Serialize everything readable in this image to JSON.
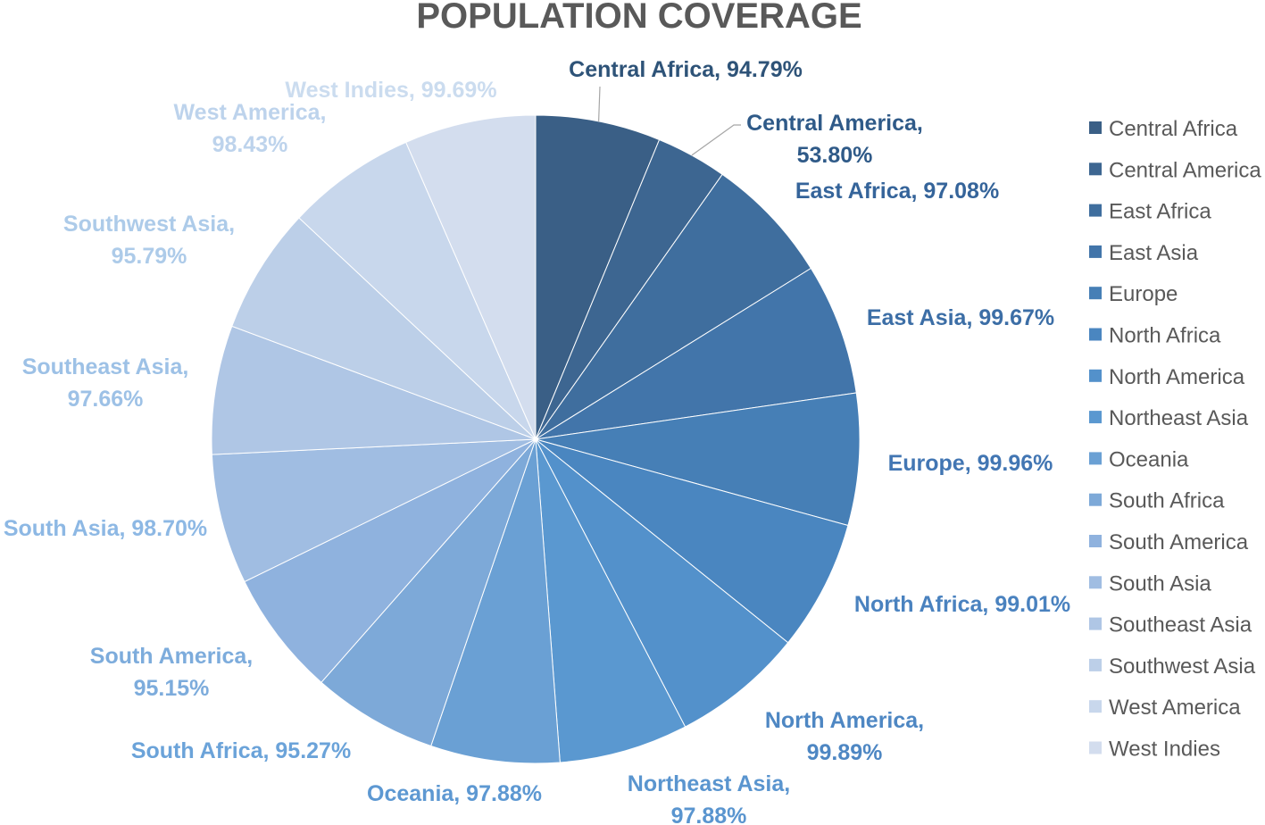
{
  "chart_data": {
    "type": "pie",
    "title": "POPULATION COVERAGE",
    "categories": [
      "Central Africa",
      "Central America",
      "East Africa",
      "East Asia",
      "Europe",
      "North Africa",
      "North America",
      "Northeast Asia",
      "Oceania",
      "South Africa",
      "South America",
      "South Asia",
      "Southeast Asia",
      "Southwest Asia",
      "West America",
      "West Indies"
    ],
    "values": [
      94.79,
      53.8,
      97.08,
      99.67,
      99.96,
      99.01,
      99.89,
      97.88,
      97.88,
      95.27,
      95.15,
      98.7,
      97.66,
      95.79,
      98.43,
      99.69
    ],
    "data_labels": [
      [
        "Central Africa, 94.79%"
      ],
      [
        "Central America,",
        "53.80%"
      ],
      [
        "East Africa, 97.08%"
      ],
      [
        "East Asia, 99.67%"
      ],
      [
        "Europe, 99.96%"
      ],
      [
        "North Africa, 99.01%"
      ],
      [
        "North America,",
        "99.89%"
      ],
      [
        "Northeast Asia,",
        "97.88%"
      ],
      [
        "Oceania, 97.88%"
      ],
      [
        "South Africa, 95.27%"
      ],
      [
        "South America,",
        "95.15%"
      ],
      [
        "South Asia, 98.70%"
      ],
      [
        "Southeast Asia,",
        "97.66%"
      ],
      [
        "Southwest Asia,",
        "95.79%"
      ],
      [
        "West America,",
        "98.43%"
      ],
      [
        "West Indies, 99.69%"
      ]
    ],
    "colors": [
      "#3a5f86",
      "#3d6691",
      "#3f6e9e",
      "#4275aa",
      "#467fb6",
      "#4a86c0",
      "#5391cb",
      "#5a98d0",
      "#6aa0d4",
      "#7da9d8",
      "#8fb2de",
      "#a0bde2",
      "#afc6e5",
      "#bccfe8",
      "#c8d7ec",
      "#d3ddee"
    ],
    "label_colors": [
      "#2e5378",
      "#2f5a88",
      "#35649a",
      "#3c6ea6",
      "#4276b3",
      "#4a82bf",
      "#4e87c3",
      "#5a95cf",
      "#5d98d2",
      "#6ba3d9",
      "#7dacdc",
      "#8db8e4",
      "#9dc1e6",
      "#adcbe9",
      "#bdd3ec",
      "#cbdcef"
    ],
    "legend_position": "right"
  }
}
